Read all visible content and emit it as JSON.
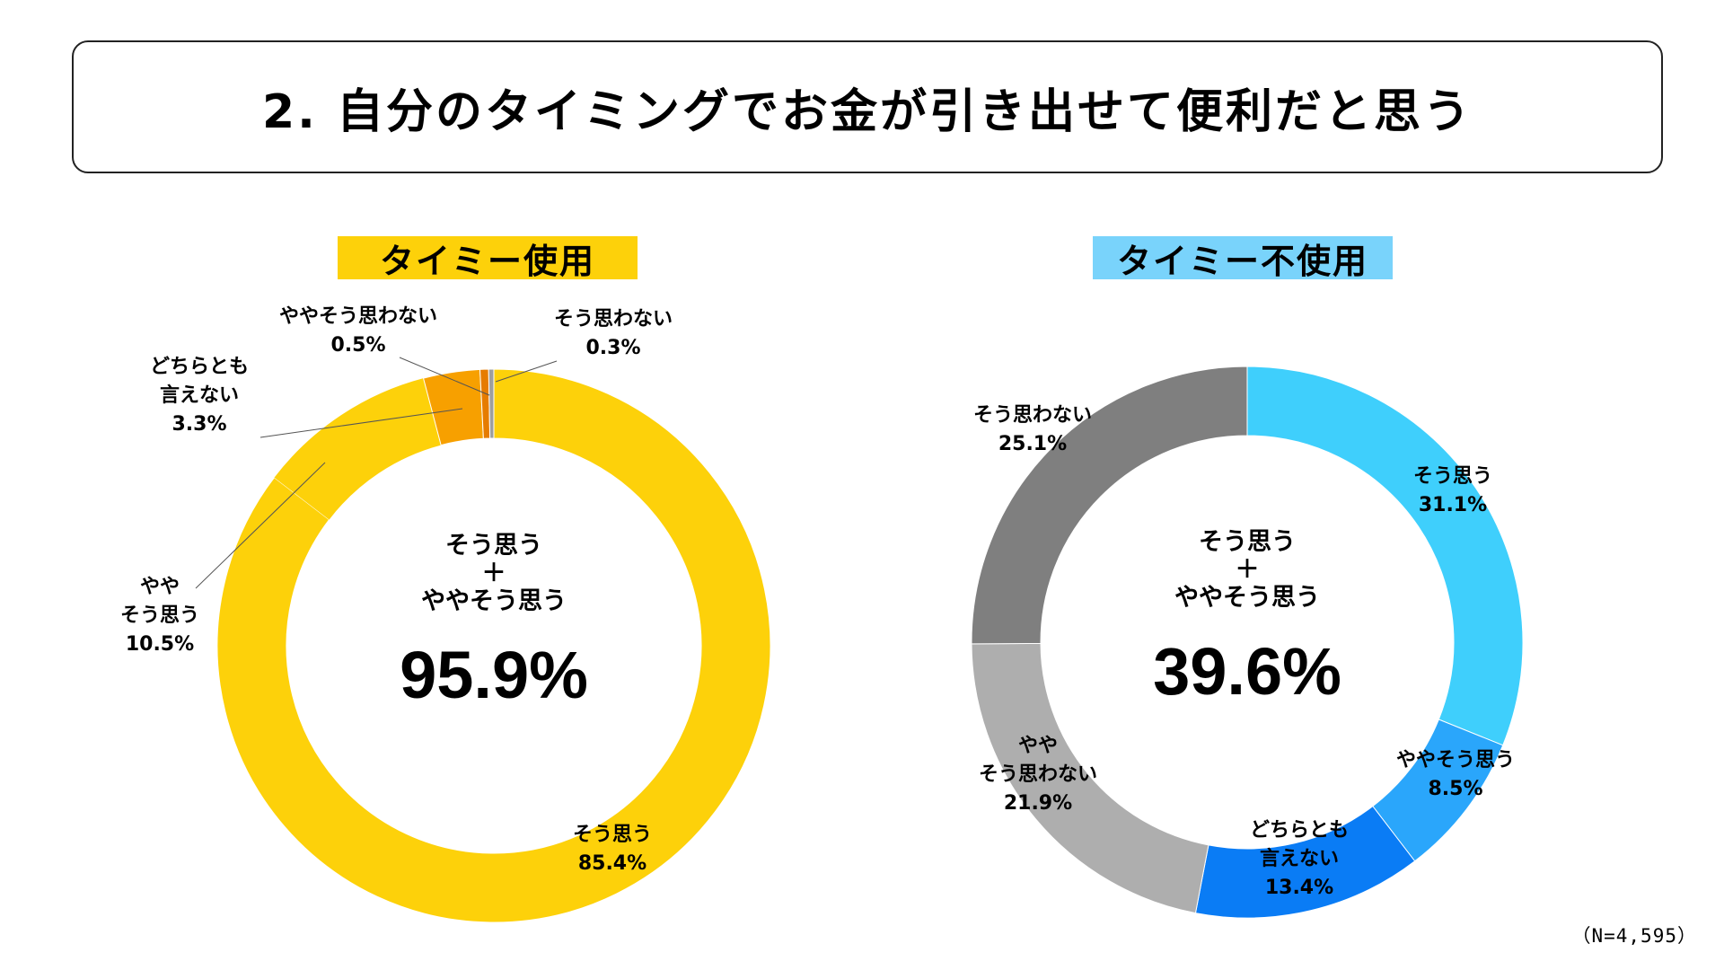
{
  "title": "2. 自分のタイミングでお金が引き出せて便利だと思う",
  "note": "（N=4,595）",
  "center": {
    "line1": "そう思う",
    "plus": "＋",
    "line3": "ややそう思う"
  },
  "chart_data": [
    {
      "type": "pie",
      "title": "タイミー使用",
      "title_color": "#fdd10a",
      "total_label": "95.9%",
      "slices": [
        {
          "name": "そう思う",
          "label_lines": [
            "そう思う"
          ],
          "value": 85.4,
          "value_label": "85.4%",
          "color": "#fdd10a"
        },
        {
          "name": "ややそう思う",
          "label_lines": [
            "やや",
            "そう思う"
          ],
          "value": 10.5,
          "value_label": "10.5%",
          "color": "#fdd10a"
        },
        {
          "name": "どちらとも言えない",
          "label_lines": [
            "どちらとも",
            "言えない"
          ],
          "value": 3.3,
          "value_label": "3.3%",
          "color": "#f7a000"
        },
        {
          "name": "ややそう思わない",
          "label_lines": [
            "ややそう思わない"
          ],
          "value": 0.5,
          "value_label": "0.5%",
          "color": "#e67c00"
        },
        {
          "name": "そう思わない",
          "label_lines": [
            "そう思わない"
          ],
          "value": 0.3,
          "value_label": "0.3%",
          "color": "#9e9e9e"
        }
      ]
    },
    {
      "type": "pie",
      "title": "タイミー不使用",
      "title_color": "#79d3fb",
      "total_label": "39.6%",
      "slices": [
        {
          "name": "そう思う",
          "label_lines": [
            "そう思う"
          ],
          "value": 31.1,
          "value_label": "31.1%",
          "color": "#3fcffc"
        },
        {
          "name": "ややそう思う",
          "label_lines": [
            "ややそう思う"
          ],
          "value": 8.5,
          "value_label": "8.5%",
          "color": "#2aa6fb"
        },
        {
          "name": "どちらとも言えない",
          "label_lines": [
            "どちらとも",
            "言えない"
          ],
          "value": 13.4,
          "value_label": "13.4%",
          "color": "#0a7cf5"
        },
        {
          "name": "ややそう思わない",
          "label_lines": [
            "やや",
            "そう思わない"
          ],
          "value": 21.9,
          "value_label": "21.9%",
          "color": "#aeaeae"
        },
        {
          "name": "そう思わない",
          "label_lines": [
            "そう思わない"
          ],
          "value": 25.1,
          "value_label": "25.1%",
          "color": "#7f7f7f"
        }
      ]
    }
  ]
}
